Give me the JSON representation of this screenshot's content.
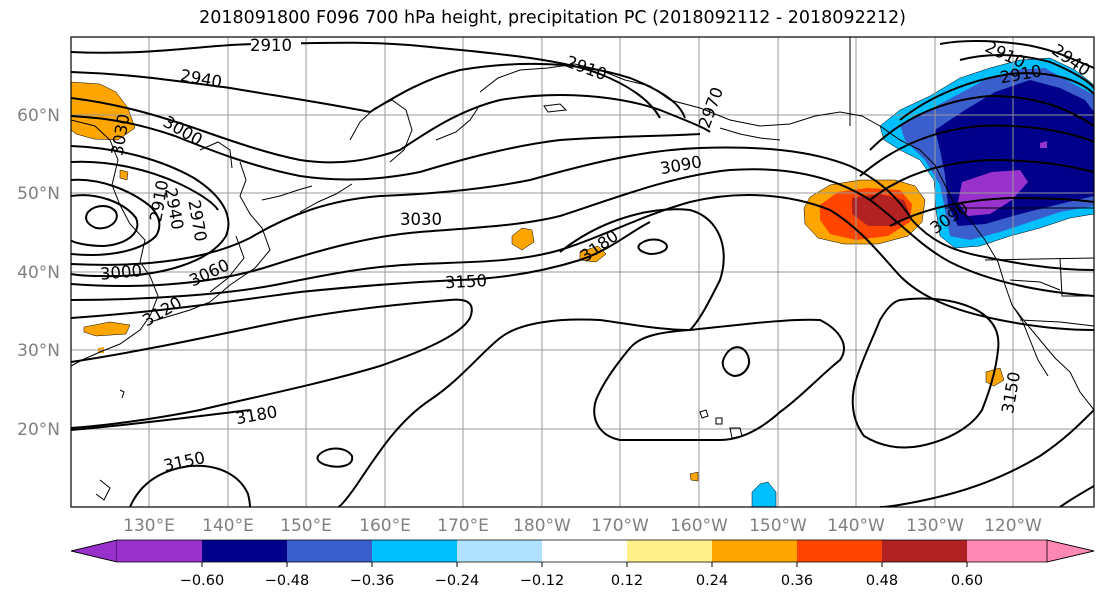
{
  "title": "2018091800 F096 700 hPa height, precipitation PC (2018092112 - 2018092212)",
  "lat_ticks": [
    "60°N",
    "50°N",
    "40°N",
    "30°N",
    "20°N"
  ],
  "lon_ticks": [
    "130°E",
    "140°E",
    "150°E",
    "160°E",
    "170°E",
    "180°W",
    "170°W",
    "160°W",
    "150°W",
    "140°W",
    "130°W",
    "120°W"
  ],
  "contour_labels": [
    "2910",
    "2940",
    "2910",
    "2970",
    "3000",
    "3030",
    "2910",
    "2940",
    "2970",
    "3000",
    "3060",
    "3120",
    "3090",
    "3030",
    "3150",
    "3180",
    "3180",
    "3150",
    "3090",
    "2910",
    "2940",
    "2910",
    "3150"
  ],
  "colorbar": {
    "colors": [
      "#9932cc",
      "#00008b",
      "#3a5fcd",
      "#00bfff",
      "#b0e2ff",
      "#ffffff",
      "#fff08a",
      "#ffa500",
      "#ff4500",
      "#b22222",
      "#ff89b4"
    ],
    "tick_labels": [
      "−0.60",
      "−0.48",
      "−0.36",
      "−0.24",
      "−0.12",
      "0.12",
      "0.24",
      "0.36",
      "0.48",
      "0.60"
    ]
  }
}
